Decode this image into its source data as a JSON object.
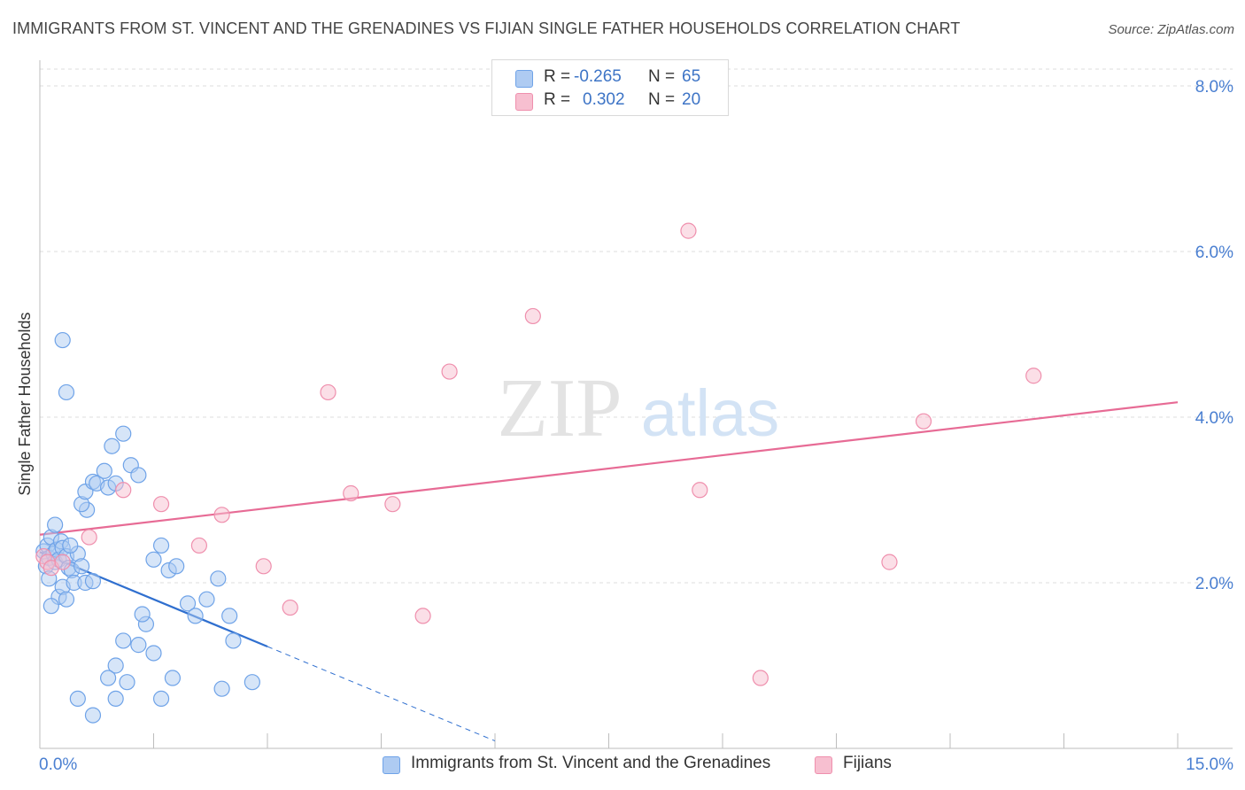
{
  "title": "IMMIGRANTS FROM ST. VINCENT AND THE GRENADINES VS FIJIAN SINGLE FATHER HOUSEHOLDS CORRELATION CHART",
  "source": "Source: ZipAtlas.com",
  "watermark": {
    "zip": "ZIP",
    "atlas": "atlas"
  },
  "stats": [
    {
      "r_label": "R =",
      "r_value": "-0.265",
      "n_label": "N =",
      "n_value": "65",
      "color": "#aecbf2"
    },
    {
      "r_label": "R =",
      "r_value": "0.302",
      "n_label": "N =",
      "n_value": "20",
      "color": "#f7bfd0"
    }
  ],
  "legend": [
    {
      "label": "Immigrants from St. Vincent and the Grenadines",
      "color": "#aecbf2"
    },
    {
      "label": "Fijians",
      "color": "#f7bfd0"
    }
  ],
  "colors": {
    "blue_point": "#6fa3e8",
    "blue_line": "#2f6fcf",
    "pink_point": "#ef8fad",
    "pink_line": "#e76b95",
    "axis_text": "#4a7fd1"
  },
  "chart_data": {
    "type": "scatter",
    "title": "IMMIGRANTS FROM ST. VINCENT AND THE GRENADINES VS FIJIAN SINGLE FATHER HOUSEHOLDS CORRELATION CHART",
    "xlabel": "",
    "ylabel": "Single Father Households",
    "xlim": [
      0,
      15
    ],
    "ylim": [
      0,
      8
    ],
    "x_tick_labels": [
      "0.0%",
      "15.0%"
    ],
    "y_ticks": [
      2,
      4,
      6,
      8
    ],
    "y_tick_labels": [
      "2.0%",
      "4.0%",
      "6.0%",
      "8.0%"
    ],
    "grid": true,
    "series": [
      {
        "name": "Immigrants from St. Vincent and the Grenadines",
        "r": -0.265,
        "n": 65,
        "trend": {
          "x0": 0.0,
          "y0": 2.37,
          "x1": 3.0,
          "y1": 1.23,
          "dash_to_x": 6.0
        },
        "points": [
          [
            0.05,
            2.38
          ],
          [
            0.08,
            2.2
          ],
          [
            0.1,
            2.45
          ],
          [
            0.12,
            2.3
          ],
          [
            0.15,
            2.55
          ],
          [
            0.18,
            2.35
          ],
          [
            0.2,
            2.25
          ],
          [
            0.22,
            2.4
          ],
          [
            0.25,
            2.28
          ],
          [
            0.28,
            2.5
          ],
          [
            0.3,
            2.42
          ],
          [
            0.35,
            2.32
          ],
          [
            0.38,
            2.18
          ],
          [
            0.42,
            2.15
          ],
          [
            0.12,
            2.05
          ],
          [
            0.2,
            2.7
          ],
          [
            0.25,
            1.83
          ],
          [
            0.3,
            1.95
          ],
          [
            0.15,
            1.72
          ],
          [
            0.35,
            1.8
          ],
          [
            0.45,
            2.0
          ],
          [
            0.5,
            2.35
          ],
          [
            0.4,
            2.45
          ],
          [
            0.55,
            2.2
          ],
          [
            0.6,
            2.0
          ],
          [
            0.7,
            2.02
          ],
          [
            0.62,
            2.88
          ],
          [
            0.55,
            2.95
          ],
          [
            0.6,
            3.1
          ],
          [
            0.7,
            3.22
          ],
          [
            0.75,
            3.2
          ],
          [
            0.85,
            3.35
          ],
          [
            0.9,
            3.15
          ],
          [
            0.95,
            3.65
          ],
          [
            1.0,
            3.2
          ],
          [
            1.1,
            3.8
          ],
          [
            1.2,
            3.42
          ],
          [
            1.3,
            3.3
          ],
          [
            1.5,
            2.28
          ],
          [
            1.6,
            2.45
          ],
          [
            1.7,
            2.15
          ],
          [
            1.8,
            2.2
          ],
          [
            1.95,
            1.75
          ],
          [
            2.05,
            1.6
          ],
          [
            2.2,
            1.8
          ],
          [
            2.35,
            2.05
          ],
          [
            2.5,
            1.6
          ],
          [
            2.55,
            1.3
          ],
          [
            0.3,
            4.93
          ],
          [
            0.35,
            4.3
          ],
          [
            1.1,
            1.3
          ],
          [
            1.3,
            1.25
          ],
          [
            1.4,
            1.5
          ],
          [
            1.5,
            1.15
          ],
          [
            1.35,
            1.62
          ],
          [
            1.0,
            1.0
          ],
          [
            0.9,
            0.85
          ],
          [
            1.15,
            0.8
          ],
          [
            1.6,
            0.6
          ],
          [
            1.75,
            0.85
          ],
          [
            2.4,
            0.72
          ],
          [
            2.8,
            0.8
          ],
          [
            0.5,
            0.6
          ],
          [
            0.7,
            0.4
          ],
          [
            1.0,
            0.6
          ]
        ]
      },
      {
        "name": "Fijians",
        "r": 0.302,
        "n": 20,
        "trend": {
          "x0": 0.0,
          "y0": 2.58,
          "x1": 15.0,
          "y1": 4.18
        },
        "points": [
          [
            0.05,
            2.32
          ],
          [
            0.1,
            2.25
          ],
          [
            0.15,
            2.18
          ],
          [
            0.3,
            2.25
          ],
          [
            0.65,
            2.55
          ],
          [
            1.1,
            3.12
          ],
          [
            1.6,
            2.95
          ],
          [
            2.1,
            2.45
          ],
          [
            2.4,
            2.82
          ],
          [
            2.95,
            2.2
          ],
          [
            3.3,
            1.7
          ],
          [
            3.8,
            4.3
          ],
          [
            4.1,
            3.08
          ],
          [
            4.65,
            2.95
          ],
          [
            5.05,
            1.6
          ],
          [
            5.4,
            4.55
          ],
          [
            6.5,
            5.22
          ],
          [
            8.55,
            6.25
          ],
          [
            8.7,
            3.12
          ],
          [
            9.5,
            0.85
          ]
        ]
      },
      {
        "name": "",
        "points": [
          [
            11.2,
            2.25
          ],
          [
            11.65,
            3.95
          ],
          [
            13.1,
            4.5
          ]
        ]
      }
    ]
  }
}
